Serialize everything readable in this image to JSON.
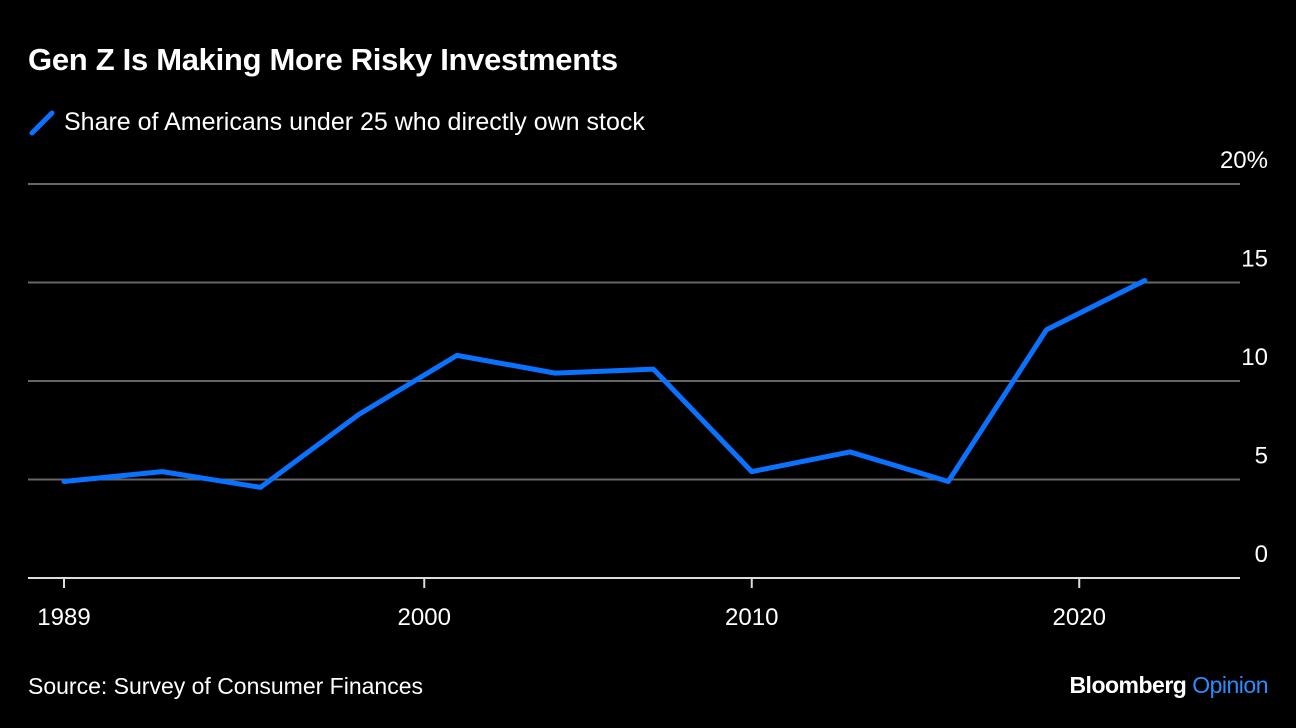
{
  "title": "Gen Z Is Making More Risky Investments",
  "source": "Source: Survey of Consumer Finances",
  "logo": {
    "brand": "Bloomberg",
    "section": "Opinion"
  },
  "colors": {
    "background": "#000000",
    "line": "#0a72ff",
    "grid": "#666666",
    "text": "#ffffff"
  },
  "chart_data": {
    "type": "line",
    "title": "Gen Z Is Making More Risky Investments",
    "xlabel": "",
    "ylabel": "",
    "xlim": [
      1988,
      2025
    ],
    "ylim": [
      0,
      20
    ],
    "x_ticks": [
      1989,
      2000,
      2010,
      2020
    ],
    "x_tick_labels": [
      "1989",
      "2000",
      "2010",
      "2020"
    ],
    "y_ticks": [
      0,
      5,
      10,
      15,
      20
    ],
    "y_tick_labels": [
      "0",
      "5",
      "10",
      "15",
      "20%"
    ],
    "grid": "horizontal",
    "legend_placement": "top-left",
    "series": [
      {
        "name": "Share of Americans under 25 who directly own stock",
        "color": "#0a72ff",
        "x": [
          1989,
          1992,
          1995,
          1998,
          2001,
          2004,
          2007,
          2010,
          2013,
          2016,
          2019,
          2022
        ],
        "values": [
          4.9,
          5.4,
          4.6,
          8.3,
          11.3,
          10.4,
          10.6,
          5.4,
          6.4,
          4.9,
          12.6,
          15.1
        ]
      }
    ]
  }
}
